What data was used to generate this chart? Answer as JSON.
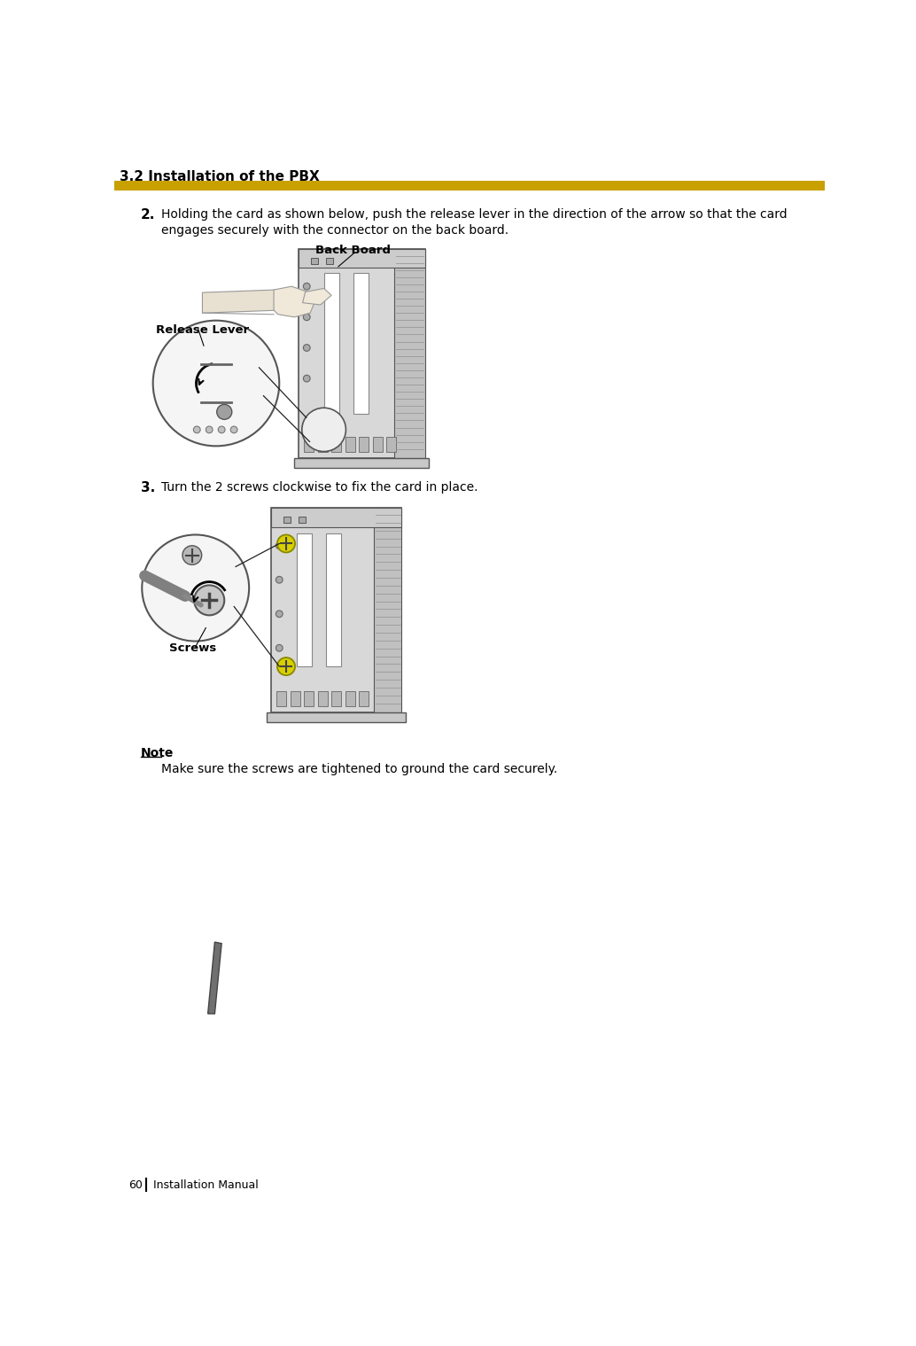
{
  "page_title": "3.2 Installation of the PBX",
  "title_color": "#000000",
  "title_fontsize": 11,
  "title_bold": true,
  "rule_color": "#C8A000",
  "step2_number": "2.",
  "step2_text": "Holding the card as shown below, push the release lever in the direction of the arrow so that the card\nengages securely with the connector on the back board.",
  "step3_number": "3.",
  "step3_text": "Turn the 2 screws clockwise to fix the card in place.",
  "note_label": "Note",
  "note_text": "Make sure the screws are tightened to ground the card securely.",
  "footer_page": "60",
  "footer_text": "Installation Manual",
  "label_back_board": "Back Board",
  "label_release_lever": "Release Lever",
  "label_screws": "Screws",
  "bg_color": "#ffffff",
  "text_color": "#000000",
  "body_fontsize": 10,
  "footer_fontsize": 9
}
